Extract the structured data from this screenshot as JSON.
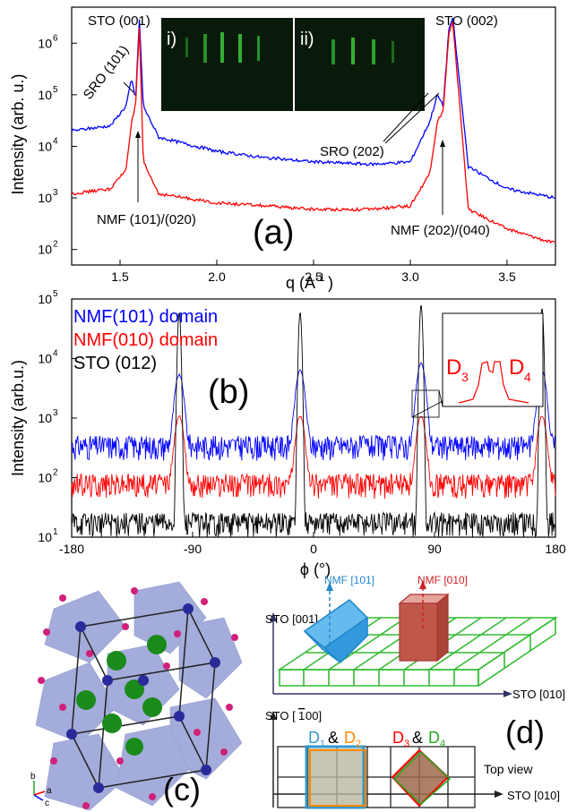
{
  "colors": {
    "blue": "#0000ff",
    "red": "#ff0000",
    "black": "#000000",
    "green": "#22aa22",
    "cyan": "#3399cc",
    "orange": "#ff8800",
    "maroon": "#b03030"
  },
  "panel_a": {
    "label": "(a)",
    "ylabel": "Intensity (arb. u.)",
    "xlabel": "q (A",
    "xlabel_sup": "-1",
    "xlabel_end": ")",
    "xticks": [
      "1.5",
      "2.0",
      "2.5",
      "3.0",
      "3.5"
    ],
    "yticks": [
      {
        "b": "10",
        "e": "2"
      },
      {
        "b": "10",
        "e": "3"
      },
      {
        "b": "10",
        "e": "4"
      },
      {
        "b": "10",
        "e": "5"
      },
      {
        "b": "10",
        "e": "6"
      }
    ],
    "annotations": {
      "sto001": "STO (001)",
      "sro101": "SRO (101)",
      "nmf101": "NMF (101)/(020)",
      "sto002": "STO (002)",
      "sro202": "SRO (202)",
      "nmf202": "NMF (202)/(040)"
    },
    "inset_labels": [
      "i)",
      "ii)"
    ]
  },
  "panel_b": {
    "label": "(b)",
    "ylabel": "Intensity (arb.u.)",
    "xlabel": "ϕ (°)",
    "xticks": [
      "-180",
      "-90",
      "0",
      "90",
      "180"
    ],
    "yticks": [
      {
        "b": "10",
        "e": "1"
      },
      {
        "b": "10",
        "e": "2"
      },
      {
        "b": "10",
        "e": "3"
      },
      {
        "b": "10",
        "e": "4"
      },
      {
        "b": "10",
        "e": "5"
      }
    ],
    "legend": [
      "NMF(101) domain",
      "NMF(010) domain",
      "STO (012)"
    ],
    "inset": {
      "left": "D",
      "left_sub": "3",
      "right": "D",
      "right_sub": "4"
    }
  },
  "panel_c": {
    "label": "(c)",
    "axes": [
      "b",
      "a",
      "c"
    ]
  },
  "panel_d": {
    "label": "(d)",
    "y3d": "STO [001]",
    "x3d": "STO [010]",
    "nmf101": "NMF [101]",
    "nmf010": "NMF [010]",
    "ytop": "STO [",
    "ytop_bar": "1",
    "ytop_end": "00]",
    "xtop": "STO [010]",
    "topview": "Top view",
    "d1": "D",
    "d1s": "1",
    "amp1": "&",
    "d2": "D",
    "d2s": "2",
    "d3": "D",
    "d3s": "3",
    "amp2": "&",
    "d4": "D",
    "d4s": "4"
  },
  "chart_data": [
    {
      "type": "line",
      "title": "",
      "xlabel": "q (A-1)",
      "ylabel": "Intensity (arb. u.)",
      "xlim": [
        1.25,
        3.75
      ],
      "ylim": [
        50,
        5000000
      ],
      "yscale": "log",
      "series": [
        {
          "name": "",
          "color": "blue",
          "x": [
            1.25,
            1.45,
            1.53,
            1.56,
            1.58,
            1.6,
            1.62,
            1.7,
            2.0,
            2.25,
            2.5,
            2.8,
            3.0,
            3.1,
            3.14,
            3.17,
            3.2,
            3.22,
            3.3,
            3.5,
            3.75
          ],
          "y": [
            20000,
            25000,
            60000,
            200000,
            80000,
            3000000,
            60000,
            15000,
            8000,
            6000,
            5000,
            4500,
            5000,
            30000,
            100000,
            60000,
            2000000,
            3000000,
            4000,
            1500,
            1000
          ]
        },
        {
          "name": "",
          "color": "red",
          "x": [
            1.25,
            1.45,
            1.53,
            1.56,
            1.58,
            1.6,
            1.62,
            1.7,
            2.0,
            2.25,
            2.5,
            2.8,
            3.0,
            3.1,
            3.14,
            3.17,
            3.2,
            3.22,
            3.3,
            3.5,
            3.75
          ],
          "y": [
            1200,
            1500,
            3500,
            30000,
            60000,
            2000000,
            5000,
            1200,
            800,
            700,
            600,
            600,
            700,
            3000,
            30000,
            50000,
            1500000,
            2500000,
            600,
            250,
            130
          ]
        }
      ]
    },
    {
      "type": "line",
      "title": "",
      "xlabel": "ϕ (°)",
      "ylabel": "Intensity (arb.u.)",
      "xlim": [
        -180,
        180
      ],
      "ylim": [
        10,
        100000
      ],
      "yscale": "log",
      "series": [
        {
          "name": "NMF(101) domain",
          "color": "blue",
          "peaks": [
            -100,
            -10,
            80,
            170
          ],
          "peak_values": [
            5000,
            6000,
            8000,
            6000
          ],
          "baseline": 350
        },
        {
          "name": "NMF(010) domain",
          "color": "red",
          "peaks": [
            -100,
            -10,
            80,
            170
          ],
          "peak_values": [
            1000,
            1000,
            1000,
            1000
          ],
          "baseline": 80
        },
        {
          "name": "STO (012)",
          "color": "black",
          "peaks": [
            -100,
            -10,
            80,
            170
          ],
          "peak_values": [
            60000,
            60000,
            80000,
            70000
          ],
          "baseline": 18
        }
      ]
    }
  ]
}
